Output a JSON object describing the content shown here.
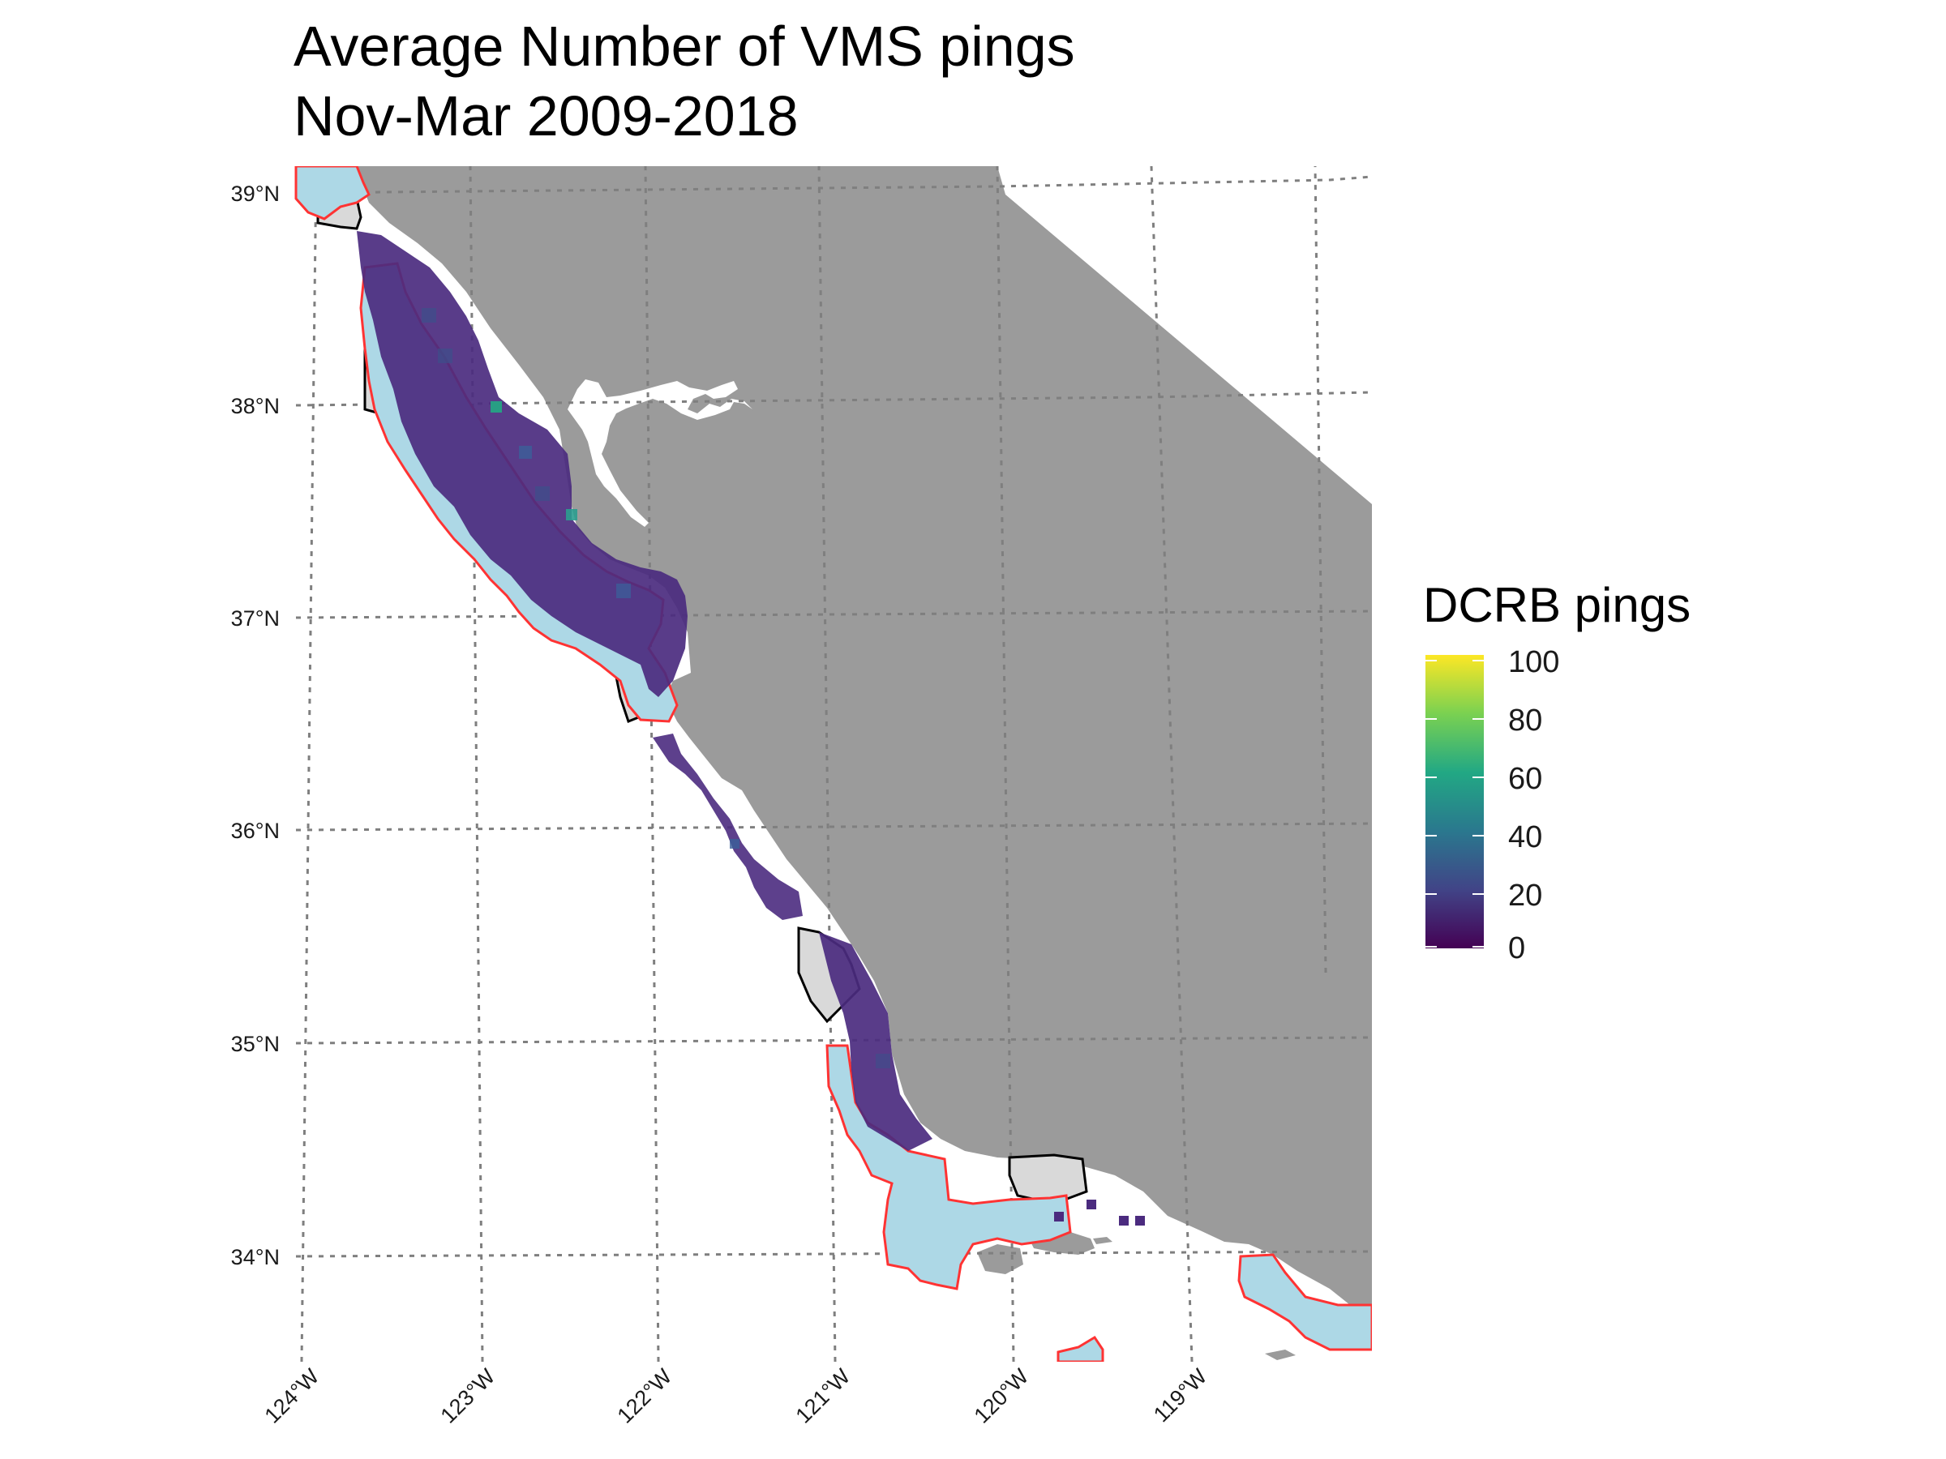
{
  "title": {
    "line1": "Average Number of VMS pings",
    "line2": "Nov-Mar 2009-2018"
  },
  "axes": {
    "latitude_labels": [
      "39°N",
      "38°N",
      "37°N",
      "36°N",
      "35°N",
      "34°N"
    ],
    "longitude_labels": [
      "124°W",
      "123°W",
      "122°W",
      "121°W",
      "120°W",
      "119°W"
    ]
  },
  "legend": {
    "title": "DCRB pings",
    "ticks": [
      "100",
      "80",
      "60",
      "40",
      "20",
      "0"
    ],
    "colors": [
      "#fde725",
      "#7ad151",
      "#22a884",
      "#2a788e",
      "#414487",
      "#440154"
    ]
  },
  "colors": {
    "land": "#9b9b9b",
    "closure_fill": "#add8e6",
    "closure_outline": "#ff3333",
    "mpa_fill": "#d9d9d9",
    "mpa_outline": "#000000",
    "graticule": "#7f7f7f",
    "pings_base": "#4b2b7f"
  }
}
